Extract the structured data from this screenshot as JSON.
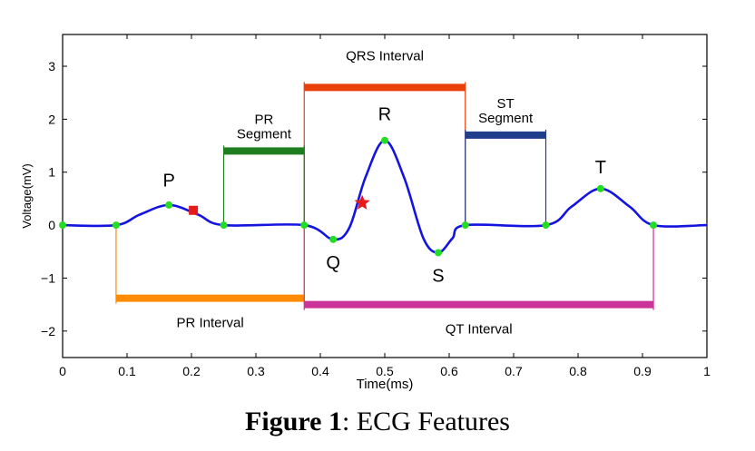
{
  "chart_data": {
    "type": "line",
    "xlabel": "Time(ms)",
    "ylabel": "Voltage(mV)",
    "xlim": [
      0,
      1
    ],
    "ylim": [
      -2.5,
      3.6
    ],
    "x_ticks": [
      0,
      0.1,
      0.2,
      0.3,
      0.4,
      0.5,
      0.6,
      0.7,
      0.8,
      0.9,
      1
    ],
    "x_tick_labels": [
      "0",
      "0.1",
      "0.2",
      "0.3",
      "0.4",
      "0.5",
      "0.6",
      "0.7",
      "0.8",
      "0.9",
      "1"
    ],
    "y_ticks": [
      3,
      2,
      1,
      0,
      -1,
      -2
    ],
    "y_tick_labels": [
      "3",
      "2",
      "1",
      "0",
      "−1",
      "−2"
    ],
    "series": [
      {
        "color": "#1414e0",
        "x": [
          0,
          0.083,
          0.12,
          0.165,
          0.21,
          0.25,
          0.375,
          0.42,
          0.445,
          0.47,
          0.5,
          0.53,
          0.56,
          0.583,
          0.605,
          0.625,
          0.75,
          0.79,
          0.835,
          0.88,
          0.917,
          1
        ],
        "y": [
          0,
          0,
          0.2,
          0.38,
          0.2,
          0,
          0,
          -0.27,
          -0.05,
          0.9,
          1.6,
          0.9,
          -0.25,
          -0.52,
          -0.25,
          0,
          0,
          0.35,
          0.69,
          0.35,
          0,
          0
        ]
      }
    ],
    "points": [
      {
        "x": 0,
        "y": 0
      },
      {
        "x": 0.083,
        "y": 0
      },
      {
        "x": 0.165,
        "y": 0.38
      },
      {
        "x": 0.25,
        "y": 0
      },
      {
        "x": 0.375,
        "y": 0
      },
      {
        "x": 0.42,
        "y": -0.27
      },
      {
        "x": 0.5,
        "y": 1.6
      },
      {
        "x": 0.583,
        "y": -0.52
      },
      {
        "x": 0.625,
        "y": 0
      },
      {
        "x": 0.75,
        "y": 0
      },
      {
        "x": 0.835,
        "y": 0.69
      },
      {
        "x": 0.917,
        "y": 0
      }
    ],
    "markers": [
      {
        "shape": "square",
        "x": 0.203,
        "y": 0.28,
        "color": "#e41a1c"
      },
      {
        "shape": "star",
        "x": 0.465,
        "y": 0.42,
        "color": "#e41a1c"
      }
    ],
    "wave_labels": [
      {
        "text": "P",
        "x": 0.165,
        "y": 0.85
      },
      {
        "text": "Q",
        "x": 0.42,
        "y": -0.7
      },
      {
        "text": "R",
        "x": 0.5,
        "y": 2.1
      },
      {
        "text": "S",
        "x": 0.583,
        "y": -0.95
      },
      {
        "text": "T",
        "x": 0.835,
        "y": 1.1
      }
    ],
    "intervals": [
      {
        "label": "QRS Interval",
        "x_start": 0.375,
        "x_end": 0.625,
        "bar_y": 2.6,
        "color": "#e8420a"
      },
      {
        "label": "PR Segment",
        "x_start": 0.25,
        "x_end": 0.375,
        "bar_y": 1.4,
        "color": "#1e7d1e"
      },
      {
        "label": "ST Segment",
        "x_start": 0.625,
        "x_end": 0.75,
        "bar_y": 1.7,
        "color": "#1f3f8c"
      },
      {
        "label": "PR Interval",
        "x_start": 0.083,
        "x_end": 0.375,
        "bar_y": -1.38,
        "color": "#ff8c00"
      },
      {
        "label": "QT Interval",
        "x_start": 0.375,
        "x_end": 0.917,
        "bar_y": -1.5,
        "color": "#cc3399"
      }
    ]
  },
  "caption": {
    "bold": "Figure 1",
    "rest": ": ECG Features"
  }
}
